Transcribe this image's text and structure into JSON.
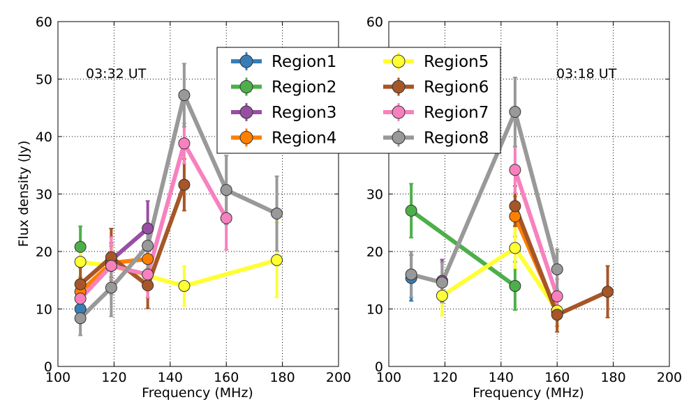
{
  "chart_data": [
    {
      "type": "line",
      "title": "",
      "annotation": "03:32 UT",
      "xlabel": "Frequency (MHz)",
      "ylabel": "Flux density (Jy)",
      "xlim": [
        100,
        200
      ],
      "ylim": [
        0,
        60
      ],
      "xticks": [
        100,
        120,
        140,
        160,
        180,
        200
      ],
      "yticks": [
        0,
        10,
        20,
        30,
        40,
        50,
        60
      ],
      "grid": true,
      "series": [
        {
          "name": "Region1",
          "color": "#377eb8",
          "points": [
            {
              "x": 108,
              "y": 10.0,
              "err": 2.0
            }
          ]
        },
        {
          "name": "Region2",
          "color": "#4daf4a",
          "points": [
            {
              "x": 108,
              "y": 20.8,
              "err": 3.6
            }
          ]
        },
        {
          "name": "Region3",
          "color": "#984ea3",
          "points": [
            {
              "x": 119,
              "y": 18.5,
              "err": 3.0
            },
            {
              "x": 132,
              "y": 24.0,
              "err": 4.8
            }
          ]
        },
        {
          "name": "Region4",
          "color": "#ff7f00",
          "points": [
            {
              "x": 108,
              "y": 13.0,
              "err": 2.5
            },
            {
              "x": 119,
              "y": 18.0,
              "err": 3.0
            },
            {
              "x": 132,
              "y": 18.7,
              "err": 3.0
            }
          ]
        },
        {
          "name": "Region5",
          "color": "#ffff33",
          "points": [
            {
              "x": 108,
              "y": 18.2,
              "err": 3.0
            },
            {
              "x": 119,
              "y": 17.5,
              "err": 3.0
            },
            {
              "x": 145,
              "y": 14.0,
              "err": 3.5
            },
            {
              "x": 178,
              "y": 18.5,
              "err": 6.5
            }
          ]
        },
        {
          "name": "Region6",
          "color": "#a65628",
          "points": [
            {
              "x": 108,
              "y": 14.3,
              "err": 3.0
            },
            {
              "x": 119,
              "y": 19.0,
              "err": 5.0
            },
            {
              "x": 132,
              "y": 14.1,
              "err": 4.0
            },
            {
              "x": 145,
              "y": 31.6,
              "err": 4.5
            }
          ]
        },
        {
          "name": "Region7",
          "color": "#f781bf",
          "points": [
            {
              "x": 108,
              "y": 11.8,
              "err": 3.0
            },
            {
              "x": 119,
              "y": 17.5,
              "err": 5.0
            },
            {
              "x": 132,
              "y": 16.0,
              "err": 4.0
            },
            {
              "x": 145,
              "y": 38.8,
              "err": 3.5
            },
            {
              "x": 160,
              "y": 25.8,
              "err": 5.5
            }
          ]
        },
        {
          "name": "Region8",
          "color": "#999999",
          "points": [
            {
              "x": 108,
              "y": 8.4,
              "err": 3.0
            },
            {
              "x": 119,
              "y": 13.7,
              "err": 5.0
            },
            {
              "x": 132,
              "y": 21.0,
              "err": 4.0
            },
            {
              "x": 145,
              "y": 47.2,
              "err": 5.5
            },
            {
              "x": 160,
              "y": 30.7,
              "err": 6.0
            },
            {
              "x": 178,
              "y": 26.6,
              "err": 6.5
            }
          ]
        }
      ]
    },
    {
      "type": "line",
      "title": "",
      "annotation": "03:18 UT",
      "xlabel": "Frequency (MHz)",
      "ylabel": "",
      "xlim": [
        100,
        200
      ],
      "ylim": [
        0,
        60
      ],
      "xticks": [
        100,
        120,
        140,
        160,
        180,
        200
      ],
      "yticks": [
        0,
        10,
        20,
        30,
        40,
        50,
        60
      ],
      "grid": true,
      "series": [
        {
          "name": "Region1",
          "color": "#377eb8",
          "points": [
            {
              "x": 108,
              "y": 15.4,
              "err": 4.0
            }
          ]
        },
        {
          "name": "Region2",
          "color": "#4daf4a",
          "points": [
            {
              "x": 108,
              "y": 27.1,
              "err": 4.7
            },
            {
              "x": 145,
              "y": 14.0,
              "err": 4.2
            }
          ]
        },
        {
          "name": "Region3",
          "color": "#984ea3",
          "points": [
            {
              "x": 119,
              "y": 14.9,
              "err": 3.7
            }
          ]
        },
        {
          "name": "Region4",
          "color": "#ff7f00",
          "points": [
            {
              "x": 145,
              "y": 26.1,
              "err": 3.5
            },
            {
              "x": 160,
              "y": 9.5,
              "err": 2.5
            }
          ]
        },
        {
          "name": "Region5",
          "color": "#ffff33",
          "points": [
            {
              "x": 119,
              "y": 12.3,
              "err": 3.5
            },
            {
              "x": 145,
              "y": 20.6,
              "err": 3.5
            },
            {
              "x": 160,
              "y": 9.7,
              "err": 2.5
            }
          ]
        },
        {
          "name": "Region6",
          "color": "#a65628",
          "points": [
            {
              "x": 145,
              "y": 27.9,
              "err": 3.5
            },
            {
              "x": 160,
              "y": 9.0,
              "err": 3.0
            },
            {
              "x": 178,
              "y": 13.0,
              "err": 4.5
            }
          ]
        },
        {
          "name": "Region7",
          "color": "#f781bf",
          "points": [
            {
              "x": 145,
              "y": 34.2,
              "err": 4.0
            },
            {
              "x": 160,
              "y": 12.2,
              "err": 3.0
            }
          ]
        },
        {
          "name": "Region8",
          "color": "#999999",
          "points": [
            {
              "x": 108,
              "y": 16.0,
              "err": 4.0
            },
            {
              "x": 119,
              "y": 14.6,
              "err": 3.5
            },
            {
              "x": 145,
              "y": 44.3,
              "err": 6.0
            },
            {
              "x": 160,
              "y": 16.9,
              "err": 3.5
            }
          ]
        }
      ]
    }
  ],
  "legend": {
    "placement": "top-center",
    "entries": [
      "Region1",
      "Region2",
      "Region3",
      "Region4",
      "Region5",
      "Region6",
      "Region7",
      "Region8"
    ]
  }
}
